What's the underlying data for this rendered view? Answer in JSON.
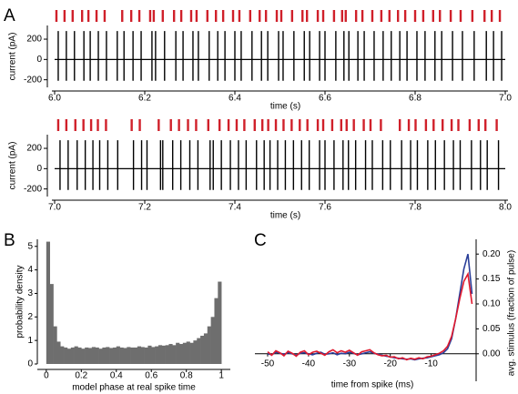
{
  "chart_data": [
    {
      "type": "spikes",
      "panel_label": "A",
      "ylabel": "current (pA)",
      "xlabel": "time (s)",
      "xlim": [
        6.0,
        7.0
      ],
      "xticks": [
        {
          "value": 6.0,
          "label": "6.0"
        },
        6.2,
        6.4,
        6.6,
        6.8,
        {
          "value": 7.0,
          "label": "7.0"
        }
      ],
      "ylim": [
        -230,
        290
      ],
      "yticks": [
        -200,
        0,
        200
      ],
      "spikes": {
        "color": "#000000",
        "peak": 280,
        "trough": -210,
        "times": [
          6.008,
          6.026,
          6.044,
          6.065,
          6.079,
          6.097,
          6.115,
          6.139,
          6.154,
          6.174,
          6.192,
          6.216,
          6.224,
          6.244,
          6.269,
          6.285,
          6.307,
          6.319,
          6.343,
          6.362,
          6.378,
          6.4,
          6.414,
          6.438,
          6.459,
          6.473,
          6.497,
          6.507,
          6.531,
          6.554,
          6.566,
          6.588,
          6.6,
          6.624,
          6.642,
          6.653,
          6.673,
          6.687,
          6.709,
          6.729,
          6.747,
          6.766,
          6.782,
          6.804,
          6.822,
          6.844,
          6.859,
          6.883,
          6.905,
          6.931,
          6.958,
          6.974,
          6.992
        ]
      },
      "model_spikes": {
        "color": "#d0202a",
        "times": [
          6.004,
          6.022,
          6.04,
          6.061,
          6.075,
          6.093,
          6.111,
          6.15,
          6.17,
          6.188,
          6.212,
          6.22,
          6.24,
          6.265,
          6.281,
          6.303,
          6.315,
          6.339,
          6.358,
          6.374,
          6.396,
          6.41,
          6.434,
          6.455,
          6.469,
          6.493,
          6.503,
          6.527,
          6.55,
          6.56,
          6.584,
          6.596,
          6.62,
          6.638,
          6.646,
          6.669,
          6.683,
          6.705,
          6.725,
          6.743,
          6.762,
          6.778,
          6.8,
          6.818,
          6.84,
          6.855,
          6.879,
          6.901,
          6.927,
          6.954,
          6.97,
          6.988
        ]
      }
    },
    {
      "type": "spikes",
      "ylabel": "current (pA)",
      "xlabel": "time (s)",
      "xlim": [
        7.0,
        8.0
      ],
      "xticks": [
        {
          "value": 7.0,
          "label": "7.0"
        },
        7.2,
        7.4,
        7.6,
        7.8,
        {
          "value": 8.0,
          "label": "8.0"
        }
      ],
      "ylim": [
        -230,
        290
      ],
      "yticks": [
        -200,
        0,
        200
      ],
      "spikes": {
        "color": "#000000",
        "peak": 280,
        "trough": -210,
        "times": [
          7.012,
          7.03,
          7.05,
          7.068,
          7.085,
          7.1,
          7.118,
          7.14,
          7.175,
          7.193,
          7.205,
          7.235,
          7.24,
          7.262,
          7.28,
          7.3,
          7.318,
          7.345,
          7.352,
          7.37,
          7.39,
          7.408,
          7.425,
          7.448,
          7.465,
          7.478,
          7.495,
          7.512,
          7.53,
          7.548,
          7.565,
          7.588,
          7.6,
          7.62,
          7.64,
          7.652,
          7.668,
          7.69,
          7.705,
          7.728,
          7.745,
          7.77,
          7.79,
          7.805,
          7.828,
          7.845,
          7.865,
          7.885,
          7.9,
          7.925,
          7.945,
          7.96,
          7.985
        ]
      },
      "model_spikes": {
        "color": "#d0202a",
        "times": [
          7.008,
          7.026,
          7.046,
          7.064,
          7.081,
          7.096,
          7.114,
          7.171,
          7.189,
          7.231,
          7.258,
          7.276,
          7.296,
          7.314,
          7.341,
          7.366,
          7.386,
          7.404,
          7.421,
          7.444,
          7.461,
          7.474,
          7.491,
          7.508,
          7.526,
          7.544,
          7.561,
          7.584,
          7.596,
          7.616,
          7.636,
          7.648,
          7.664,
          7.686,
          7.701,
          7.724,
          7.766,
          7.786,
          7.801,
          7.824,
          7.841,
          7.861,
          7.881,
          7.896,
          7.921,
          7.941,
          7.956,
          7.981
        ]
      }
    },
    {
      "type": "histogram",
      "panel_label": "B",
      "ylabel": "probability density",
      "xlabel": "model phase at real spike time",
      "color": "#6e6e6e",
      "xlim": [
        -0.02,
        1.02
      ],
      "xticks": [
        0,
        0.2,
        0.4,
        0.6,
        0.8,
        1
      ],
      "ylim": [
        0,
        5.3
      ],
      "yticks": [
        0,
        1,
        2,
        3,
        4,
        5
      ],
      "bins": [
        0,
        0.02,
        0.04,
        0.06,
        0.08,
        0.1,
        0.12,
        0.14,
        0.16,
        0.18,
        0.2,
        0.22,
        0.24,
        0.26,
        0.28,
        0.3,
        0.32,
        0.34,
        0.36,
        0.38,
        0.4,
        0.42,
        0.44,
        0.46,
        0.48,
        0.5,
        0.52,
        0.54,
        0.56,
        0.58,
        0.6,
        0.62,
        0.64,
        0.66,
        0.68,
        0.7,
        0.72,
        0.74,
        0.76,
        0.78,
        0.8,
        0.82,
        0.84,
        0.86,
        0.88,
        0.9,
        0.92,
        0.94,
        0.96,
        0.98,
        1
      ],
      "values": [
        5.2,
        3.4,
        1.6,
        0.95,
        0.75,
        0.7,
        0.65,
        0.7,
        0.75,
        0.7,
        0.65,
        0.7,
        0.68,
        0.72,
        0.7,
        0.65,
        0.7,
        0.72,
        0.68,
        0.7,
        0.75,
        0.7,
        0.68,
        0.72,
        0.7,
        0.7,
        0.75,
        0.72,
        0.7,
        0.78,
        0.72,
        0.75,
        0.8,
        0.78,
        0.8,
        0.85,
        0.8,
        0.9,
        0.85,
        0.9,
        0.95,
        0.9,
        1.0,
        1.1,
        1.2,
        1.3,
        1.6,
        2.0,
        2.8,
        3.5
      ]
    },
    {
      "type": "line",
      "panel_label": "C",
      "xlabel": "time from spike (ms)",
      "ylabel": "avg. stimulus (fraction of pulse)",
      "xlim": [
        -52,
        1
      ],
      "xticks": [
        -50,
        -40,
        -30,
        -20,
        -10
      ],
      "ylim": [
        -0.015,
        0.215
      ],
      "yticks": [
        {
          "value": 0,
          "label": "0.00"
        },
        0.05,
        {
          "value": 0.1,
          "label": "0.10"
        },
        0.15,
        {
          "value": 0.2,
          "label": "0.20"
        }
      ],
      "x": [
        -50,
        -49,
        -48,
        -47,
        -46,
        -45,
        -44,
        -43,
        -42,
        -41,
        -40,
        -39,
        -38,
        -37,
        -36,
        -35,
        -34,
        -33,
        -32,
        -31,
        -30,
        -29,
        -28,
        -27,
        -26,
        -25,
        -24,
        -23,
        -22,
        -21,
        -20,
        -19,
        -18,
        -17,
        -16,
        -15,
        -14,
        -13,
        -12,
        -11,
        -10,
        -9,
        -8,
        -7,
        -6,
        -5,
        -4,
        -3,
        -2,
        -1,
        0
      ],
      "series": [
        {
          "color": "#2b3f99",
          "values": [
            0.0,
            -0.002,
            0.003,
            0.001,
            -0.001,
            0.002,
            0.0,
            -0.003,
            0.001,
            0.002,
            0.0,
            -0.002,
            0.001,
            0.003,
            -0.001,
            0.0,
            0.002,
            -0.002,
            0.001,
            0.0,
            0.003,
            0.001,
            -0.002,
            0.0,
            0.002,
            0.004,
            0.001,
            -0.001,
            -0.003,
            -0.005,
            -0.006,
            -0.008,
            -0.009,
            -0.01,
            -0.011,
            -0.01,
            -0.012,
            -0.01,
            -0.009,
            -0.008,
            -0.006,
            -0.004,
            -0.002,
            0.002,
            0.01,
            0.03,
            0.07,
            0.12,
            0.17,
            0.2,
            0.12
          ]
        },
        {
          "color": "#e0192e",
          "values": [
            0.004,
            -0.003,
            0.006,
            0.002,
            -0.004,
            0.005,
            0.001,
            -0.005,
            0.003,
            0.006,
            -0.002,
            0.003,
            0.005,
            0.001,
            -0.003,
            0.004,
            0.008,
            0.002,
            0.006,
            0.003,
            0.007,
            0.002,
            -0.003,
            0.004,
            0.006,
            0.008,
            0.002,
            -0.002,
            -0.004,
            -0.003,
            -0.007,
            -0.006,
            -0.01,
            -0.008,
            -0.012,
            -0.009,
            -0.011,
            -0.008,
            -0.01,
            -0.006,
            -0.005,
            -0.002,
            0.001,
            0.006,
            0.015,
            0.035,
            0.07,
            0.11,
            0.145,
            0.16,
            0.1
          ]
        }
      ]
    }
  ]
}
